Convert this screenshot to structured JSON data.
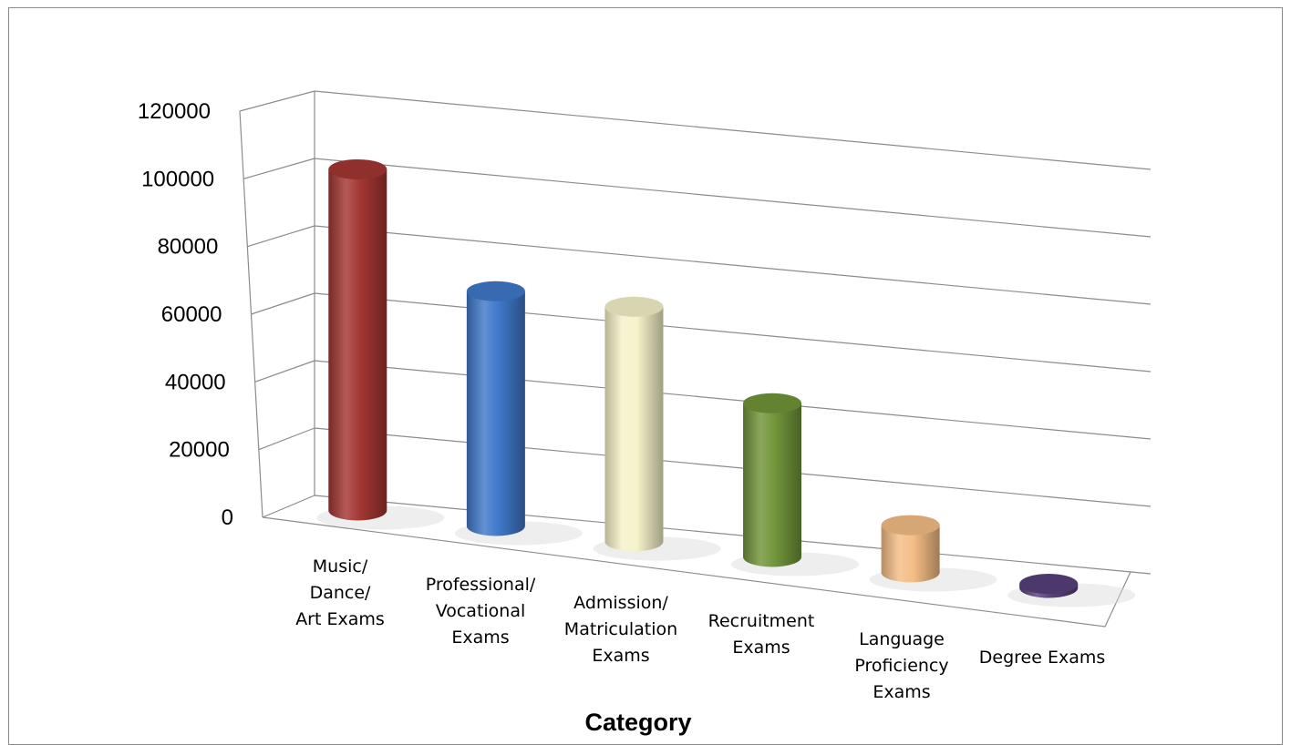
{
  "chart_data": {
    "type": "bar",
    "style": "3d-cylinder",
    "title": "",
    "xlabel": "Category",
    "ylabel": "",
    "ylim": [
      0,
      120000
    ],
    "yticks": [
      0,
      20000,
      40000,
      60000,
      80000,
      100000,
      120000
    ],
    "grid": true,
    "legend": "none",
    "categories": [
      [
        "Music/",
        "Dance/",
        "Art Exams"
      ],
      [
        "Professional/",
        "Vocational",
        "Exams"
      ],
      [
        "Admission/",
        "Matriculation",
        "Exams"
      ],
      [
        "Recruitment",
        "Exams"
      ],
      [
        "Language",
        "Proficiency",
        "Exams"
      ],
      [
        "Degree Exams"
      ]
    ],
    "values": [
      101000,
      69500,
      69500,
      45500,
      14000,
      1200
    ],
    "colors": [
      "#a33632",
      "#3f78c9",
      "#f5f3c8",
      "#71953a",
      "#f4bd85",
      "#58407a"
    ]
  }
}
